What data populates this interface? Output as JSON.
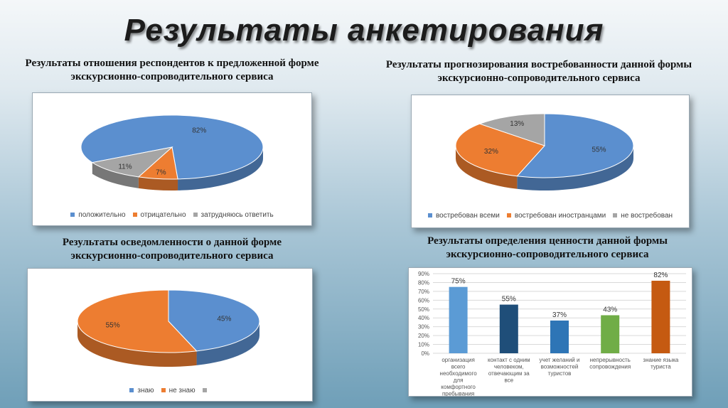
{
  "title": "Результаты анкетирования",
  "chart_data": [
    {
      "type": "pie",
      "title": "Результаты отношения респондентов к предложенной форме экскурсионно-сопроводительного сервиса",
      "categories": [
        "положительно",
        "отрицательно",
        "затрудняюсь ответить"
      ],
      "values": [
        82,
        7,
        11
      ],
      "labels": [
        "82%",
        "7%",
        "11%"
      ],
      "colors": [
        "#5b8fcf",
        "#ed7d31",
        "#a5a5a5"
      ],
      "legend": "bottom"
    },
    {
      "type": "pie",
      "title": "Результаты прогнозирования востребованности данной формы экскурсионно-сопроводительного сервиса",
      "categories": [
        "востребован всеми",
        "востребован иностранцами",
        "не востребован"
      ],
      "values": [
        55,
        32,
        13
      ],
      "labels": [
        "55%",
        "32%",
        "13%"
      ],
      "colors": [
        "#5b8fcf",
        "#ed7d31",
        "#a5a5a5"
      ],
      "legend": "bottom"
    },
    {
      "type": "pie",
      "title": "Результаты осведомленности о данной форме экскурсионно-сопроводительного сервиса",
      "categories": [
        "знаю",
        "не знаю",
        ""
      ],
      "values": [
        45,
        55,
        0
      ],
      "labels": [
        "45%",
        "55%",
        ""
      ],
      "colors": [
        "#5b8fcf",
        "#ed7d31",
        "#a5a5a5"
      ],
      "legend": "bottom"
    },
    {
      "type": "bar",
      "title": "Результаты определения ценности данной формы экскурсионно-сопроводительного сервиса",
      "categories": [
        [
          "организация",
          "всего",
          "необходимого",
          "для",
          "комфортного",
          "пребывания"
        ],
        [
          "контакт с одним",
          "человеком,",
          "отвечающим за",
          "все"
        ],
        [
          "учет желаний и",
          "возможностей",
          "туристов"
        ],
        [
          "непрерывность",
          "сопровождения"
        ],
        [
          "знание языка",
          "туриста"
        ]
      ],
      "values": [
        75,
        55,
        37,
        43,
        82
      ],
      "labels": [
        "75%",
        "55%",
        "37%",
        "43%",
        "82%"
      ],
      "colors": [
        "#5b9bd5",
        "#1f4e79",
        "#2e75b6",
        "#70ad47",
        "#c55a11"
      ],
      "ylim": [
        0,
        90
      ],
      "yticks": [
        "0%",
        "10%",
        "20%",
        "30%",
        "40%",
        "50%",
        "60%",
        "70%",
        "80%",
        "90%"
      ],
      "grid": true
    }
  ]
}
